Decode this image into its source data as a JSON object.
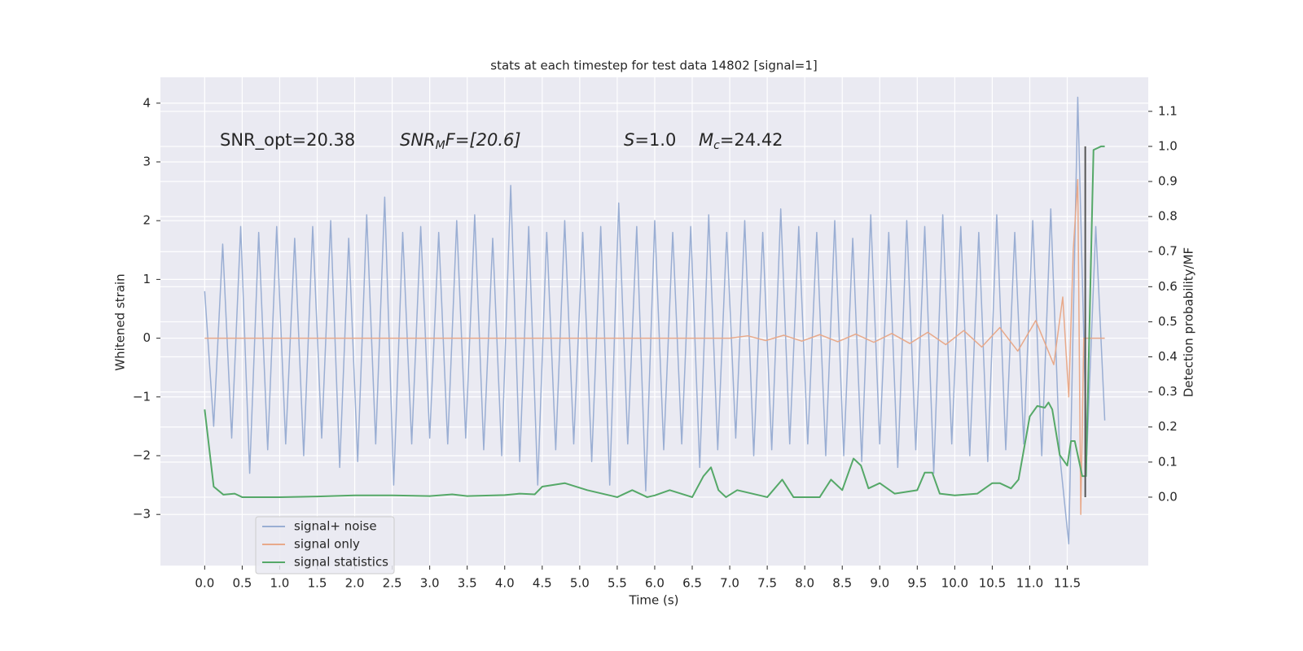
{
  "chart_data": {
    "type": "line",
    "title": "stats at each timestep for test data 14802 [signal=1]",
    "xlabel": "Time (s)",
    "ylabel": "Whitened strain",
    "y2label": "Detection probability/MF",
    "annotations": [
      {
        "main": "SNR_opt=20.38"
      },
      {
        "main": "SNR",
        "sub": "M",
        "after": "F=[20.6]"
      },
      {
        "main": "S",
        "after": "=1.0"
      },
      {
        "main": "M",
        "sub": "c",
        "after": "=24.42"
      }
    ],
    "xlim": [
      -0.59,
      12.58
    ],
    "xticks": [
      {
        "value": 0,
        "label": "0.0"
      },
      0.5,
      {
        "value": 1,
        "label": "1.0"
      },
      1.5,
      {
        "value": 2,
        "label": "2.0"
      },
      2.5,
      {
        "value": 3,
        "label": "3.0"
      },
      3.5,
      {
        "value": 4,
        "label": "4.0"
      },
      4.5,
      {
        "value": 5,
        "label": "5.0"
      },
      5.5,
      {
        "value": 6,
        "label": "6.0"
      },
      6.5,
      {
        "value": 7,
        "label": "7.0"
      },
      7.5,
      {
        "value": 8,
        "label": "8.0"
      },
      8.5,
      {
        "value": 9,
        "label": "9.0"
      },
      9.5,
      {
        "value": 10,
        "label": "10.0"
      },
      10.5,
      {
        "value": 11,
        "label": "11.0"
      },
      11.5
    ],
    "ylim": [
      -3.87,
      4.44
    ],
    "yticks": [
      {
        "value": -3,
        "label": "−3"
      },
      {
        "value": -2,
        "label": "−2"
      },
      {
        "value": -1,
        "label": "−1"
      },
      0,
      1,
      2,
      3,
      4
    ],
    "y2lim": [
      -0.195,
      1.197
    ],
    "y2ticks": [
      {
        "value": 0,
        "label": "0.0"
      },
      0.1,
      0.2,
      0.3,
      0.4,
      0.5,
      0.6,
      0.7,
      0.8,
      0.9,
      {
        "value": 1,
        "label": "1.0"
      },
      1.1
    ],
    "grid": true,
    "legend": "lower left",
    "vline": {
      "x": 11.74,
      "y2": [
        0,
        1
      ],
      "color": "#555555"
    },
    "series": [
      {
        "name": "signal+ noise",
        "color": "#9aaed3",
        "x": [
          0,
          0.12,
          0.24,
          0.36,
          0.48,
          0.6,
          0.72,
          0.84,
          0.96,
          1.08,
          1.2,
          1.32,
          1.44,
          1.56,
          1.68,
          1.8,
          1.92,
          2.04,
          2.16,
          2.28,
          2.4,
          2.52,
          2.64,
          2.76,
          2.88,
          3,
          3.12,
          3.24,
          3.36,
          3.48,
          3.6,
          3.72,
          3.84,
          3.96,
          4.08,
          4.2,
          4.32,
          4.44,
          4.56,
          4.68,
          4.8,
          4.92,
          5.04,
          5.16,
          5.28,
          5.4,
          5.52,
          5.64,
          5.76,
          5.88,
          6,
          6.12,
          6.24,
          6.36,
          6.48,
          6.6,
          6.72,
          6.84,
          6.96,
          7.08,
          7.2,
          7.32,
          7.44,
          7.56,
          7.68,
          7.8,
          7.92,
          8.04,
          8.16,
          8.28,
          8.4,
          8.52,
          8.64,
          8.76,
          8.88,
          9,
          9.12,
          9.24,
          9.36,
          9.48,
          9.6,
          9.72,
          9.84,
          9.96,
          10.08,
          10.2,
          10.32,
          10.44,
          10.56,
          10.68,
          10.8,
          10.92,
          11.04,
          11.16,
          11.28,
          11.4,
          11.52,
          11.64,
          11.76,
          11.88,
          12
        ],
        "values": [
          0.8,
          -1.5,
          1.6,
          -1.7,
          1.9,
          -2.3,
          1.8,
          -1.9,
          1.9,
          -1.8,
          1.7,
          -2.0,
          1.9,
          -1.7,
          2.0,
          -2.2,
          1.7,
          -2.1,
          2.1,
          -1.8,
          2.4,
          -2.5,
          1.8,
          -1.8,
          1.9,
          -1.7,
          1.8,
          -1.8,
          2.0,
          -1.7,
          2.1,
          -1.9,
          1.7,
          -2.0,
          2.6,
          -2.1,
          1.9,
          -2.5,
          1.8,
          -1.9,
          2.0,
          -1.8,
          1.8,
          -2.1,
          1.9,
          -2.5,
          2.3,
          -1.8,
          1.9,
          -2.6,
          2.0,
          -1.9,
          1.8,
          -1.8,
          1.9,
          -2.2,
          2.1,
          -1.9,
          1.8,
          -1.7,
          2.0,
          -2.0,
          1.8,
          -1.9,
          2.2,
          -1.8,
          1.9,
          -1.8,
          1.8,
          -2.0,
          2.0,
          -2.0,
          1.7,
          -2.1,
          2.1,
          -1.8,
          1.8,
          -2.2,
          2.0,
          -1.9,
          1.9,
          -2.3,
          2.1,
          -1.8,
          1.9,
          -2.0,
          1.8,
          -2.1,
          2.1,
          -1.9,
          1.8,
          -1.8,
          2.0,
          -2.0,
          2.2,
          -2.0,
          -3.5,
          4.1,
          -2.0,
          1.9,
          -1.4
        ]
      },
      {
        "name": "signal only",
        "color": "#e8a98a",
        "x": [
          0,
          7.0,
          7.24,
          7.48,
          7.72,
          7.96,
          8.2,
          8.44,
          8.68,
          8.92,
          9.16,
          9.4,
          9.64,
          9.88,
          10.12,
          10.36,
          10.6,
          10.84,
          11.08,
          11.32,
          11.44,
          11.52,
          11.58,
          11.64,
          11.68,
          11.72,
          12.0
        ],
        "values": [
          0,
          0,
          0.04,
          -0.04,
          0.05,
          -0.05,
          0.06,
          -0.06,
          0.07,
          -0.07,
          0.08,
          -0.09,
          0.1,
          -0.11,
          0.13,
          -0.15,
          0.18,
          -0.22,
          0.3,
          -0.45,
          0.7,
          -1.0,
          1.5,
          2.7,
          -3.0,
          0,
          0
        ]
      },
      {
        "name": "signal statistics",
        "color": "#55a868",
        "axis": "y2",
        "x": [
          0,
          0.12,
          0.25,
          0.4,
          0.5,
          1.0,
          1.5,
          2.0,
          2.5,
          3.0,
          3.3,
          3.5,
          4.0,
          4.2,
          4.4,
          4.5,
          4.8,
          5.1,
          5.5,
          5.7,
          5.9,
          6.0,
          6.2,
          6.5,
          6.65,
          6.75,
          6.85,
          6.95,
          7.1,
          7.5,
          7.7,
          7.85,
          8.2,
          8.35,
          8.5,
          8.65,
          8.75,
          8.85,
          9.0,
          9.2,
          9.5,
          9.6,
          9.7,
          9.8,
          10.0,
          10.3,
          10.5,
          10.6,
          10.75,
          10.85,
          11.0,
          11.1,
          11.2,
          11.25,
          11.3,
          11.4,
          11.5,
          11.55,
          11.6,
          11.7,
          11.75,
          11.85,
          11.95,
          12.0
        ],
        "values": [
          0.25,
          0.03,
          0.007,
          0.01,
          0.0,
          0.0,
          0.002,
          0.005,
          0.005,
          0.003,
          0.008,
          0.003,
          0.006,
          0.01,
          0.008,
          0.03,
          0.04,
          0.02,
          0.0,
          0.02,
          0.0,
          0.005,
          0.02,
          0.0,
          0.06,
          0.085,
          0.02,
          0.0,
          0.02,
          0.0,
          0.05,
          0.0,
          0.0,
          0.05,
          0.02,
          0.11,
          0.09,
          0.025,
          0.04,
          0.01,
          0.02,
          0.07,
          0.07,
          0.01,
          0.005,
          0.01,
          0.04,
          0.04,
          0.025,
          0.05,
          0.23,
          0.26,
          0.255,
          0.27,
          0.25,
          0.12,
          0.09,
          0.16,
          0.16,
          0.06,
          0.06,
          0.99,
          1.0,
          1.0
        ]
      }
    ]
  }
}
